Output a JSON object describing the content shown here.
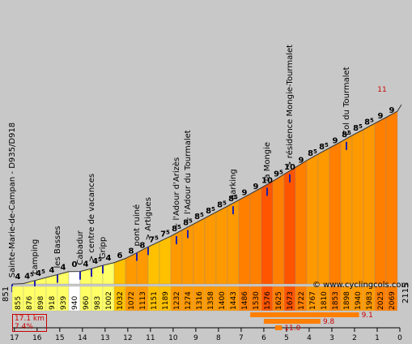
{
  "chart_data": {
    "type": "area",
    "x_axis_label_direction": "distance remaining (km)",
    "x_ticks": [
      17,
      16,
      15,
      14,
      13,
      12,
      11,
      10,
      9,
      8,
      7,
      6,
      5,
      4,
      3,
      2,
      1,
      0
    ],
    "total_km": 17.1,
    "start_altitude": 851,
    "end_altitude": 2115,
    "altitudes": [
      855,
      876,
      898,
      918,
      939,
      940,
      960,
      983,
      1002,
      1032,
      1072,
      1113,
      1151,
      1189,
      1232,
      1274,
      1316,
      1358,
      1400,
      1443,
      1486,
      1530,
      1576,
      1625,
      1673,
      1722,
      1767,
      1810,
      1853,
      1898,
      1940,
      1983,
      2025,
      2069
    ],
    "gradients": [
      4,
      4.5,
      4.5,
      4,
      4,
      0,
      4,
      4.5,
      4,
      6,
      8,
      8,
      7.5,
      7.5,
      8.5,
      8.5,
      8.5,
      8.5,
      8.5,
      8.5,
      9,
      9,
      10,
      9.5,
      10,
      9,
      8.5,
      8.5,
      9,
      8.5,
      8.5,
      8.5,
      9,
      9
    ],
    "top_gradient_marker": "11",
    "places": [
      {
        "name": "Sainte-Marie-de-Campan - D935/D918",
        "segment": 0
      },
      {
        "name": "camping",
        "segment": 4
      },
      {
        "name": "les Basses",
        "segment": 8
      },
      {
        "name": "Cabadur",
        "segment": 12
      },
      {
        "name": "> centre de vacances",
        "segment": 14
      },
      {
        "name": "Gripp",
        "segment": 16
      },
      {
        "name": "pont ruiné",
        "segment": 22
      },
      {
        "name": "> Artigues",
        "segment": 24
      },
      {
        "name": "~ l'Adour d'Arizès",
        "segment": 29
      },
      {
        "name": "~ l'Adour du Tourmalet",
        "segment": 31
      },
      {
        "name": "parking",
        "segment": 39
      },
      {
        "name": "la Mongie",
        "segment": 45
      },
      {
        "name": "> résidence Mongie-Tourmalet",
        "segment": 49
      },
      {
        "name": "Col du Tourmalet",
        "segment": 59
      }
    ],
    "steepest_bars": [
      {
        "label": "9.1",
        "from_km": 6.6,
        "to_km": 1.8
      },
      {
        "label": "9.8",
        "from_km": 6.0,
        "to_km": 3.5
      },
      {
        "label": "11.0",
        "from_km": 5.5,
        "to_km": 5.2
      }
    ],
    "summary": [
      "17.1 km",
      "7.4%"
    ],
    "colors": {
      "grad_low": "#ffff66",
      "grad_flat": "#ffffff",
      "grad_6": "#ffc000",
      "grad_8": "#ff9900",
      "grad_9": "#ff7f00",
      "grad_10": "#ff5500",
      "background": "#c8c8c8",
      "marker": "#2222aa",
      "steep_bar": "#ff7f00",
      "steep_label": "#cc0000"
    }
  },
  "copyright": "© www.cyclingcols.com"
}
